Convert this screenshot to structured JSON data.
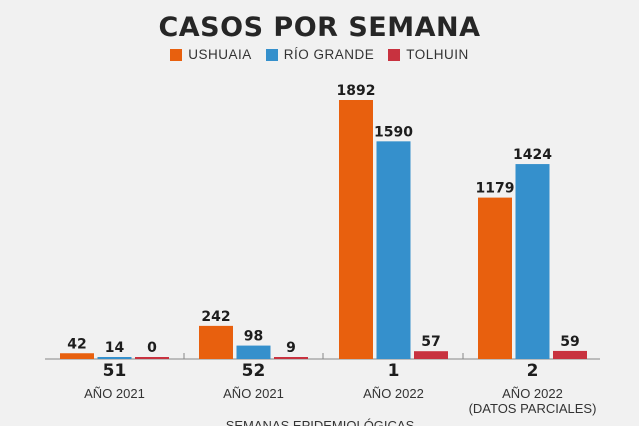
{
  "chart_data": {
    "type": "bar",
    "title": "CASOS POR SEMANA",
    "xlabel": "SEMANAS EPIDEMIOLÓGICAS",
    "categories": [
      "51",
      "52",
      "1",
      "2"
    ],
    "category_sublabels": [
      "AÑO 2021",
      "AÑO 2021",
      "AÑO 2022",
      "AÑO 2022"
    ],
    "category_notes": [
      "",
      "",
      "",
      "(DATOS PARCIALES)"
    ],
    "series": [
      {
        "name": "USHUAIA",
        "color": "#e8600e",
        "values": [
          42,
          242,
          1892,
          1179
        ]
      },
      {
        "name": "RÍO GRANDE",
        "color": "#3590cc",
        "values": [
          14,
          98,
          1590,
          1424
        ]
      },
      {
        "name": "TOLHUIN",
        "color": "#c8323f",
        "values": [
          0,
          9,
          57,
          59
        ]
      }
    ],
    "ylim": [
      0,
      1892
    ],
    "grid": false,
    "legend": "top-center",
    "data_labels": true
  }
}
